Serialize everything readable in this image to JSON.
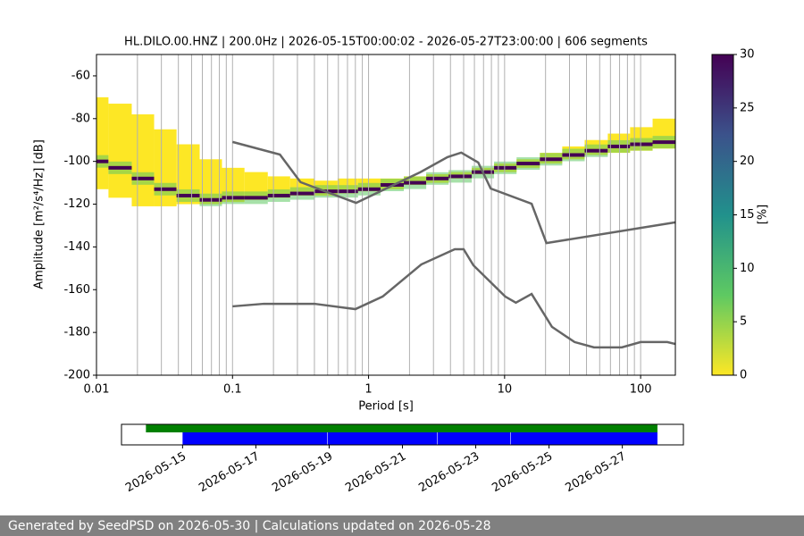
{
  "chart_data": [
    {
      "type": "psd",
      "title": "HL.DILO.00.HNZ | 200.0Hz | 2026-05-15T00:00:02 - 2026-05-27T23:00:00 | 606 segments",
      "xlabel": "Period [s]",
      "ylabel": "Amplitude [m²/s⁴/Hz] [dB]",
      "log_x": true,
      "xlim": [
        0.01,
        180
      ],
      "ylim": [
        -200,
        -50
      ],
      "xticks": [
        0.01,
        0.1,
        1,
        10,
        100
      ],
      "yticks": [
        -200,
        -180,
        -160,
        -140,
        -120,
        -100,
        -80,
        -60
      ],
      "xgrid_minor": [
        0.02,
        0.03,
        0.04,
        0.05,
        0.06,
        0.07,
        0.08,
        0.09,
        0.2,
        0.3,
        0.4,
        0.5,
        0.6,
        0.7,
        0.8,
        0.9,
        2,
        3,
        4,
        5,
        6,
        7,
        8,
        9,
        20,
        30,
        40,
        50,
        60,
        70,
        80,
        90
      ],
      "grid_color": "#b0b0b0",
      "noise_models": [
        {
          "color": "#666666",
          "x": [
            0.1,
            0.223,
            0.316,
            0.81,
            2.41,
            3.8,
            4.8,
            6.4,
            7.9,
            15.8,
            20.3,
            180
          ],
          "values": [
            -90.9,
            -96.8,
            -109.7,
            -119.4,
            -105,
            -98,
            -95.9,
            -100.5,
            -112.7,
            -119.8,
            -138.2,
            -128.5
          ]
        },
        {
          "color": "#666666",
          "x": [
            0.1,
            0.17,
            0.4,
            0.8,
            1.27,
            2.44,
            4.3,
            5.0,
            5.9,
            10.1,
            12.1,
            15.8,
            22.3,
            32.7,
            45.4,
            72.7,
            100,
            157,
            180
          ],
          "values": [
            -167.8,
            -166.6,
            -166.6,
            -169.1,
            -163.2,
            -148.2,
            -141.1,
            -141.1,
            -148.6,
            -163.2,
            -166.1,
            -162,
            -177.4,
            -184.5,
            -187,
            -187,
            -184.5,
            -184.5,
            -185.4
          ]
        }
      ],
      "density": {
        "color": "#fde725",
        "mid_color": "#5ec962",
        "mode_color": "#440154",
        "periods": [
          0.01,
          0.015,
          0.022,
          0.032,
          0.047,
          0.07,
          0.1,
          0.15,
          0.22,
          0.32,
          0.5,
          0.7,
          1,
          1.5,
          2.2,
          3.2,
          4.7,
          7,
          10,
          15,
          22,
          32,
          47,
          70,
          100,
          150
        ],
        "low": [
          -113,
          -117,
          -121,
          -121,
          -120,
          -120,
          -119,
          -118,
          -117,
          -116,
          -116,
          -115,
          -114,
          -113,
          -111,
          -110,
          -108,
          -106,
          -105,
          -103,
          -101,
          -99,
          -97,
          -96,
          -95,
          -94
        ],
        "high": [
          -70,
          -73,
          -78,
          -85,
          -92,
          -99,
          -103,
          -105,
          -107,
          -108,
          -109,
          -108,
          -108,
          -108,
          -107,
          -106,
          -105,
          -103,
          -101,
          -99,
          -96,
          -93,
          -90,
          -87,
          -84,
          -80
        ],
        "mode": [
          -100,
          -103,
          -108,
          -113,
          -116,
          -118,
          -117,
          -117,
          -116,
          -115,
          -114,
          -114,
          -113,
          -111,
          -110,
          -108,
          -107,
          -105,
          -103,
          -101,
          -99,
          -97,
          -95,
          -93,
          -92,
          -91
        ]
      },
      "colorbar": {
        "label": "[%]",
        "lim": [
          0,
          30
        ],
        "ticks": [
          0,
          5,
          10,
          15,
          20,
          25,
          30
        ],
        "colors": [
          "#fde725",
          "#5ec962",
          "#21918c",
          "#3b528b",
          "#440154"
        ]
      }
    },
    {
      "type": "timeline",
      "xlim": [
        "2026-05-13T08:00",
        "2026-05-28T16:00"
      ],
      "xticks": [
        "2026-05-15",
        "2026-05-17",
        "2026-05-19",
        "2026-05-21",
        "2026-05-23",
        "2026-05-25",
        "2026-05-27"
      ],
      "bars": [
        {
          "color": "#008000",
          "segments": [
            [
              "2026-05-14T00:00",
              "2026-05-27T23:00"
            ]
          ]
        },
        {
          "color": "#0000ff",
          "segments": [
            [
              "2026-05-15T00:00",
              "2026-05-18T22:40"
            ],
            [
              "2026-05-18T23:00",
              "2026-05-21T22:40"
            ],
            [
              "2026-05-21T23:00",
              "2026-05-23T22:40"
            ],
            [
              "2026-05-23T23:00",
              "2026-05-27T23:00"
            ]
          ]
        }
      ]
    }
  ],
  "footer": {
    "text": "Generated by SeedPSD on 2026-05-30 | Calculations updated on 2026-05-28"
  }
}
